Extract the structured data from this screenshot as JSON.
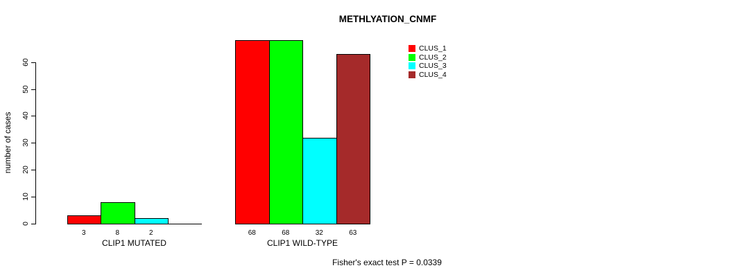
{
  "chart_data": {
    "type": "bar",
    "title": "METHLYATION_CNMF",
    "ylabel": "number of cases",
    "xlabel": "",
    "ylim": [
      0,
      60
    ],
    "yticks": [
      0,
      10,
      20,
      30,
      40,
      50,
      60
    ],
    "grid": false,
    "legend_position": "top-right",
    "annotation": "Fisher's exact test P = 0.0339",
    "categories": [
      "CLIP1 MUTATED",
      "CLIP1 WILD-TYPE"
    ],
    "series": [
      {
        "name": "CLUS_1",
        "color": "#ff0000",
        "values": [
          3,
          68
        ]
      },
      {
        "name": "CLUS_2",
        "color": "#00ff00",
        "values": [
          8,
          68
        ]
      },
      {
        "name": "CLUS_3",
        "color": "#00ffff",
        "values": [
          2,
          32
        ]
      },
      {
        "name": "CLUS_4",
        "color": "#a52a2a",
        "values": [
          0,
          63
        ]
      }
    ],
    "bar_value_labels": [
      [
        "3",
        "8",
        "2",
        ""
      ],
      [
        "68",
        "68",
        "32",
        "63"
      ]
    ]
  }
}
